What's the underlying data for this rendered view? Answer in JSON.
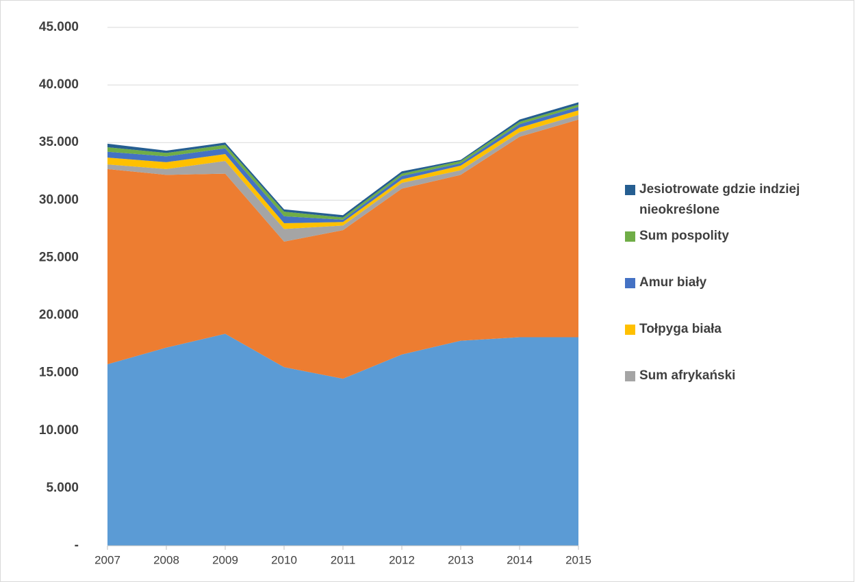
{
  "chart_data": {
    "type": "stacked_area",
    "categories": [
      "2007",
      "2008",
      "2009",
      "2010",
      "2011",
      "2012",
      "2013",
      "2014",
      "2015"
    ],
    "series": [
      {
        "color": "#5b9bd5",
        "values": [
          15750,
          17200,
          18400,
          15500,
          14500,
          16600,
          17800,
          18100,
          18100
        ]
      },
      {
        "color": "#ed7d31",
        "values": [
          16950,
          15000,
          13900,
          10900,
          12900,
          14400,
          14400,
          17400,
          18900
        ]
      },
      {
        "name": "Sum afrykański",
        "color": "#a5a5a5",
        "values": [
          400,
          500,
          1100,
          1100,
          400,
          500,
          400,
          400,
          400
        ]
      },
      {
        "name": "Tołpyga biała",
        "color": "#ffc000",
        "values": [
          600,
          600,
          600,
          500,
          300,
          300,
          400,
          400,
          400
        ]
      },
      {
        "name": "Amur biały",
        "color": "#4472c4",
        "values": [
          500,
          500,
          500,
          600,
          200,
          300,
          200,
          300,
          300
        ]
      },
      {
        "name": "Sum pospolity",
        "color": "#70ad47",
        "values": [
          400,
          300,
          300,
          400,
          200,
          200,
          200,
          200,
          200
        ]
      },
      {
        "name": "Jesiotrowate gdzie indziej nieokreślone",
        "color": "#255e91",
        "values": [
          300,
          200,
          200,
          200,
          200,
          200,
          100,
          200,
          200
        ]
      }
    ],
    "ylim": [
      0,
      45000
    ],
    "yticks": [
      {
        "value": 0,
        "label": "-"
      },
      {
        "value": 5000,
        "label": "5.000"
      },
      {
        "value": 10000,
        "label": "10.000"
      },
      {
        "value": 15000,
        "label": "15.000"
      },
      {
        "value": 20000,
        "label": "20.000"
      },
      {
        "value": 25000,
        "label": "25.000"
      },
      {
        "value": 30000,
        "label": "30.000"
      },
      {
        "value": 35000,
        "label": "35.000"
      },
      {
        "value": 40000,
        "label": "40.000"
      },
      {
        "value": 45000,
        "label": "45.000"
      }
    ],
    "grid": true,
    "legend": "right"
  }
}
